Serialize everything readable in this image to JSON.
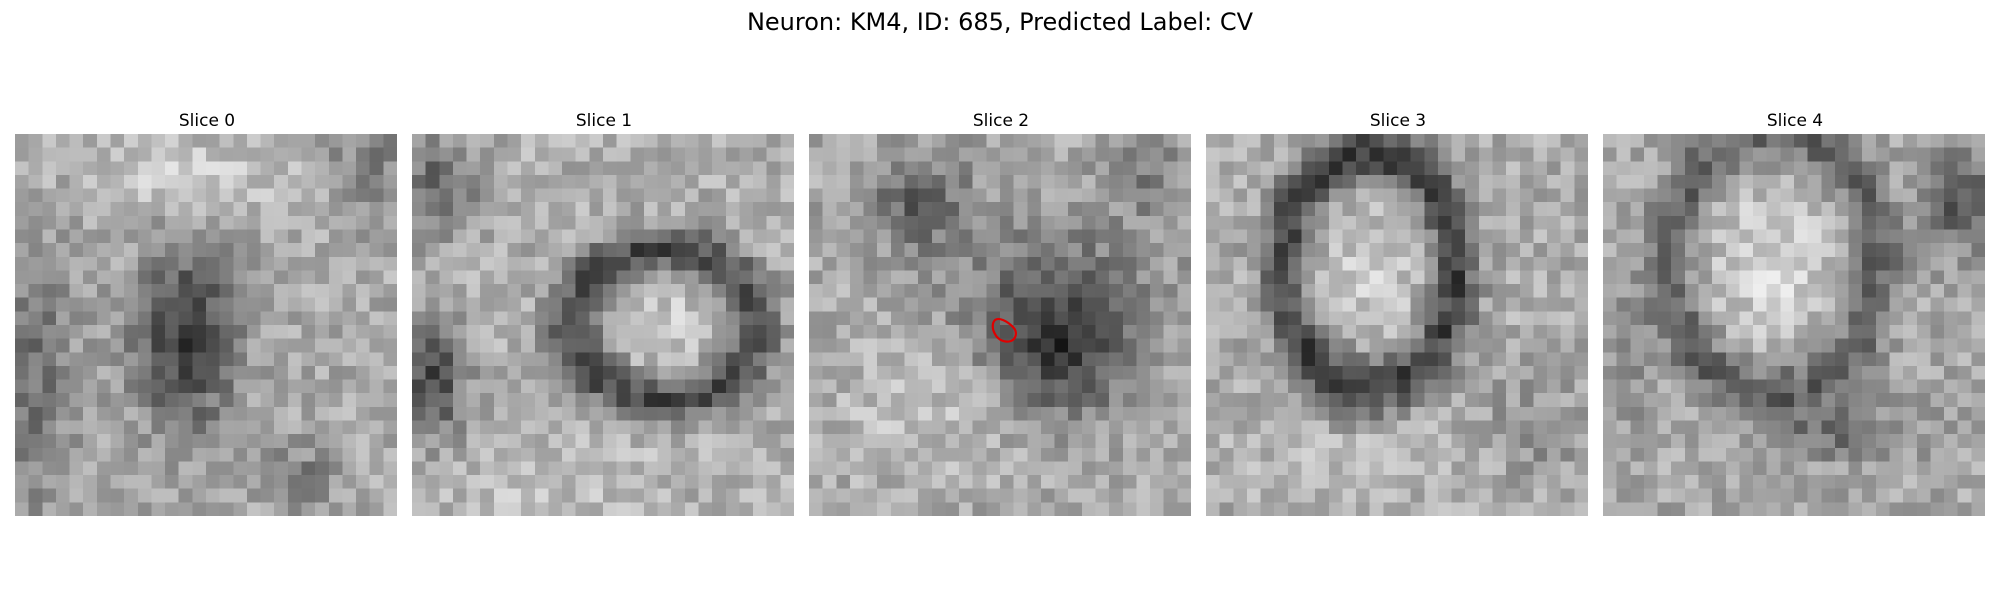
{
  "figure": {
    "title": "Neuron: KM4, ID: 685, Predicted Label: CV",
    "panels": [
      {
        "title": "Slice 0",
        "has_annotation": false
      },
      {
        "title": "Slice 1",
        "has_annotation": false
      },
      {
        "title": "Slice 2",
        "has_annotation": true
      },
      {
        "title": "Slice 3",
        "has_annotation": false
      },
      {
        "title": "Slice 4",
        "has_annotation": false
      }
    ],
    "colormap": "gray",
    "annotation_color": "#e00000"
  }
}
